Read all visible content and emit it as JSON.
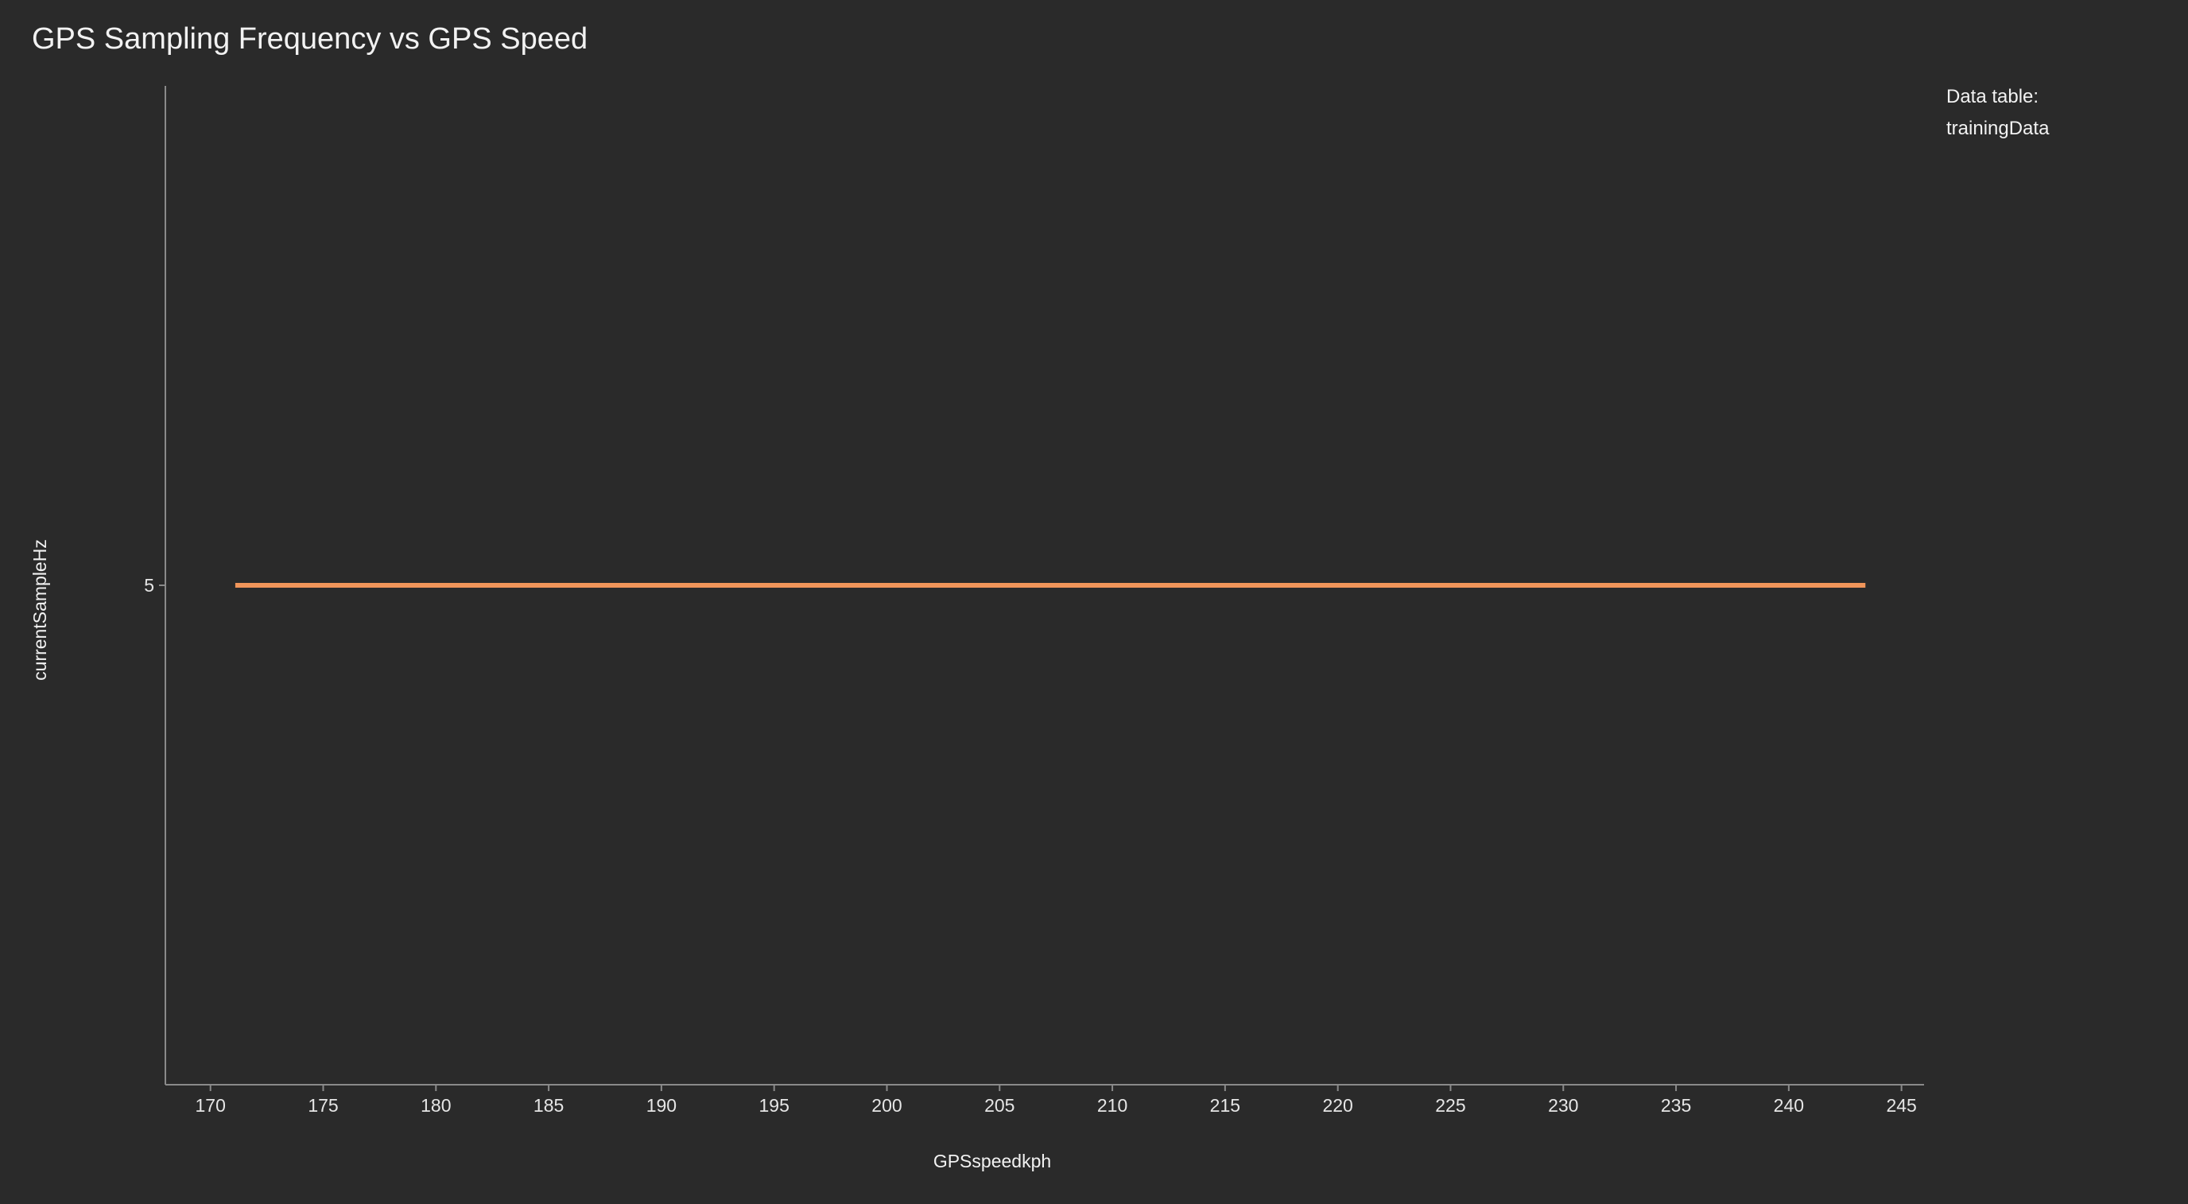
{
  "chart_data": {
    "type": "line",
    "title": "GPS Sampling Frequency vs GPS Speed",
    "xlabel": "GPSspeedkph",
    "ylabel": "currentSampleHz",
    "xlim": [
      168,
      246
    ],
    "ylim": [
      2.8,
      7.2
    ],
    "x_ticks": [
      170,
      175,
      180,
      185,
      190,
      195,
      200,
      205,
      210,
      215,
      220,
      225,
      230,
      235,
      240,
      245
    ],
    "y_ticks": [
      5
    ],
    "grid": false,
    "legend_position": "top-right",
    "legend": {
      "heading": "Data table:",
      "entry": "trainingData"
    },
    "series": [
      {
        "color": "#f0955a",
        "x": [
          171.1,
          243.4
        ],
        "y": [
          5,
          5
        ]
      }
    ]
  },
  "colors": {
    "background": "#2a2a2a",
    "axis": "#8a8a8a",
    "series": "#f0955a"
  }
}
